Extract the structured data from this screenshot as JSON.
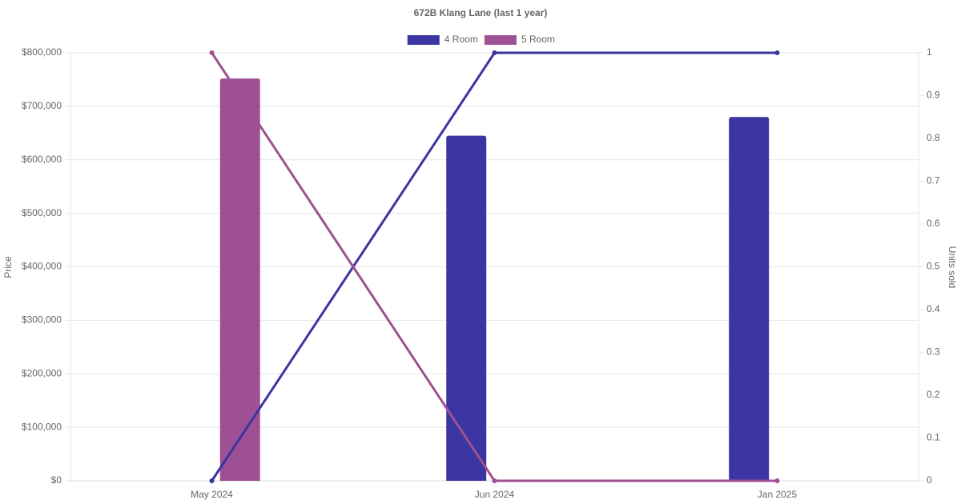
{
  "chart_data": {
    "type": "bar-line",
    "title": "672B Klang Lane (last 1 year)",
    "categories": [
      "May 2024",
      "Jun 2024",
      "Jan 2025"
    ],
    "series": [
      {
        "name": "4 Room",
        "color": "#3a35a0",
        "values": [
          null,
          645000,
          680000
        ],
        "y2_values": [
          0,
          1,
          1
        ]
      },
      {
        "name": "5 Room",
        "color": "#9e5094",
        "values": [
          752000,
          null,
          null
        ],
        "y2_values": [
          1,
          0,
          0
        ]
      }
    ],
    "ylabel": "Price",
    "y2label": "Units sold",
    "ylim": [
      0,
      800000
    ],
    "yticks": [
      {
        "value": 0,
        "label": "$0"
      },
      {
        "value": 100000,
        "label": "$100,000"
      },
      {
        "value": 200000,
        "label": "$200,000"
      },
      {
        "value": 300000,
        "label": "$300,000"
      },
      {
        "value": 400000,
        "label": "$400,000"
      },
      {
        "value": 500000,
        "label": "$500,000"
      },
      {
        "value": 600000,
        "label": "$600,000"
      },
      {
        "value": 700000,
        "label": "$700,000"
      },
      {
        "value": 800000,
        "label": "$800,000"
      }
    ],
    "y2lim": [
      0,
      1
    ],
    "y2ticks": [
      0,
      0.1,
      0.2,
      0.3,
      0.4,
      0.5,
      0.6,
      0.7,
      0.8,
      0.9,
      1
    ],
    "grid": true
  }
}
